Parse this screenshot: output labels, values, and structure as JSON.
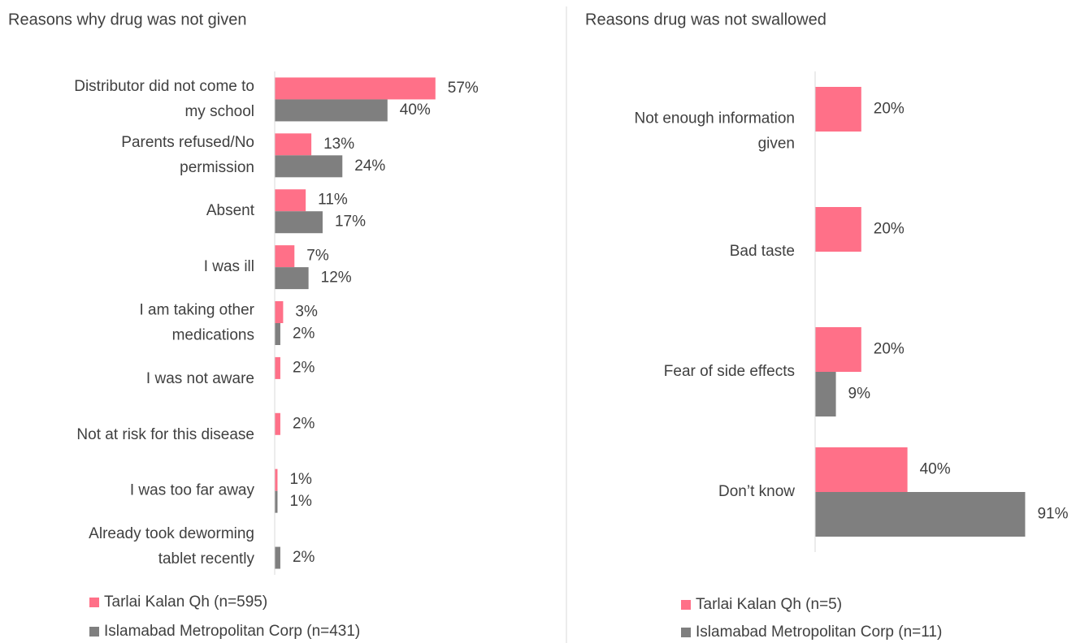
{
  "chart_data": [
    {
      "type": "bar",
      "horizontal": true,
      "title": "Reasons why drug was not given",
      "categories": [
        "Distributor did not come to my school",
        "Parents refused/No permission",
        "Absent",
        "I was ill",
        "I am taking other medications",
        "I was not aware",
        "Not at risk for this disease",
        "I was too far away",
        "Already took deworming tablet recently"
      ],
      "series": [
        {
          "name": "Tarlai Kalan Qh (n=595)",
          "color": "#ff7088",
          "values": [
            57,
            13,
            11,
            7,
            3,
            2,
            2,
            1,
            null
          ],
          "value_labels": [
            "57%",
            "13%",
            "11%",
            "7%",
            "3%",
            "2%",
            "2%",
            "1%",
            null
          ]
        },
        {
          "name": "Islamabad Metropolitan Corp (n=431)",
          "color": "#7f7f7f",
          "values": [
            40,
            24,
            17,
            12,
            2,
            null,
            null,
            1,
            2
          ],
          "value_labels": [
            "40%",
            "24%",
            "17%",
            "12%",
            "2%",
            null,
            null,
            "1%",
            "2%"
          ]
        }
      ],
      "xlim": [
        0,
        100
      ]
    },
    {
      "type": "bar",
      "horizontal": true,
      "title": "Reasons drug was not swallowed",
      "categories": [
        "Not enough information given",
        "Bad taste",
        "Fear of side effects",
        "Don’t know"
      ],
      "series": [
        {
          "name": "Tarlai Kalan Qh (n=5)",
          "color": "#ff7088",
          "values": [
            20,
            20,
            20,
            40
          ],
          "value_labels": [
            "20%",
            "20%",
            "20%",
            "40%"
          ]
        },
        {
          "name": "Islamabad Metropolitan Corp (n=11)",
          "color": "#7f7f7f",
          "values": [
            null,
            null,
            9,
            91
          ],
          "value_labels": [
            null,
            null,
            "9%",
            "91%"
          ]
        }
      ],
      "xlim": [
        0,
        100
      ]
    }
  ]
}
